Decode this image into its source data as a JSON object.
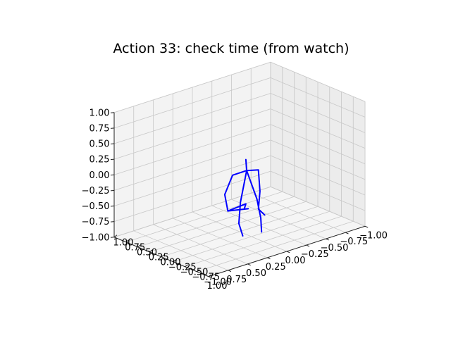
{
  "chart_data": {
    "type": "3d-line",
    "title": "Action 33: check time (from watch)",
    "xlabel": "",
    "ylabel": "",
    "zlabel": "",
    "grid": true,
    "xlim": [
      -1.0,
      1.0
    ],
    "ylim": [
      -1.0,
      1.0
    ],
    "zlim": [
      -1.0,
      1.0
    ],
    "x_ticks": [
      "−1.00",
      "−0.75",
      "−0.50",
      "−0.25",
      "0.00",
      "0.25",
      "0.50",
      "0.75",
      "1.00"
    ],
    "y_ticks": [
      "1.00",
      "0.75",
      "0.50",
      "0.25",
      "0.00",
      "−0.25",
      "−0.50",
      "−0.75",
      "−1.00"
    ],
    "z_ticks": [
      "−1.00",
      "−0.75",
      "−0.50",
      "−0.25",
      "0.00",
      "0.25",
      "0.50",
      "0.75",
      "1.00"
    ],
    "series": [
      {
        "color": "#0000ff",
        "segments": [
          [
            [
              -0.02,
              -0.1,
              0.18
            ],
            [
              -0.03,
              -0.1,
              0.0
            ]
          ],
          [
            [
              -0.03,
              -0.1,
              0.0
            ],
            [
              0.08,
              -0.15,
              -0.45
            ],
            [
              0.1,
              -0.15,
              -0.78
            ],
            [
              0.05,
              -0.15,
              -1.0
            ]
          ],
          [
            [
              -0.03,
              -0.1,
              0.0
            ],
            [
              -0.1,
              -0.2,
              -0.45
            ],
            [
              -0.12,
              -0.25,
              -0.75
            ],
            [
              -0.1,
              -0.3,
              -0.95
            ]
          ],
          [
            [
              -0.03,
              -0.1,
              0.0
            ],
            [
              0.12,
              -0.05,
              -0.03
            ],
            [
              0.22,
              -0.05,
              -0.3
            ],
            [
              0.18,
              -0.05,
              -0.58
            ]
          ],
          [
            [
              -0.03,
              -0.1,
              0.0
            ],
            [
              -0.18,
              -0.1,
              -0.05
            ],
            [
              -0.2,
              -0.1,
              -0.4
            ],
            [
              -0.15,
              -0.15,
              -0.65
            ],
            [
              -0.2,
              -0.2,
              -0.75
            ]
          ],
          [
            [
              0.18,
              -0.05,
              -0.58
            ],
            [
              -0.02,
              -0.1,
              -0.53
            ],
            [
              0.0,
              -0.1,
              -0.6
            ]
          ],
          [
            [
              0.18,
              -0.05,
              -0.58
            ],
            [
              -0.05,
              -0.1,
              -0.62
            ]
          ]
        ]
      }
    ]
  }
}
